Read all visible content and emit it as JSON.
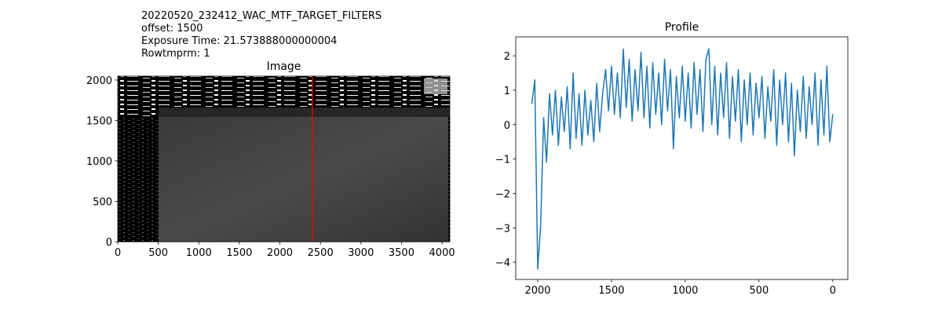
{
  "chart_data": [
    {
      "type": "image",
      "title": "Image",
      "annotations": [
        "20220520_232412_WAC_MTF_TARGET_FILTERS",
        "offset: 1500",
        "Exposure Time: 21.573888000000004",
        "Rowtmprm: 1"
      ],
      "xlim": [
        0,
        4096
      ],
      "ylim": [
        0,
        2048
      ],
      "xticks": [
        0,
        500,
        1000,
        1500,
        2000,
        2500,
        3000,
        3500,
        4000
      ],
      "yticks": [
        0,
        500,
        1000,
        1500,
        2000
      ],
      "marker_x": 2400,
      "marker_color": "#ff0000"
    },
    {
      "type": "line",
      "title": "Profile",
      "x": [
        2040,
        2020,
        2000,
        1980,
        1960,
        1940,
        1920,
        1900,
        1880,
        1860,
        1840,
        1820,
        1800,
        1780,
        1760,
        1740,
        1720,
        1700,
        1680,
        1660,
        1640,
        1620,
        1600,
        1580,
        1560,
        1540,
        1520,
        1500,
        1480,
        1460,
        1440,
        1420,
        1400,
        1380,
        1360,
        1340,
        1320,
        1300,
        1280,
        1260,
        1240,
        1220,
        1200,
        1180,
        1160,
        1140,
        1120,
        1100,
        1080,
        1060,
        1040,
        1020,
        1000,
        980,
        960,
        940,
        920,
        900,
        880,
        860,
        840,
        820,
        800,
        780,
        760,
        740,
        720,
        700,
        680,
        660,
        640,
        620,
        600,
        580,
        560,
        540,
        520,
        500,
        480,
        460,
        440,
        420,
        400,
        380,
        360,
        340,
        320,
        300,
        280,
        260,
        240,
        220,
        200,
        180,
        160,
        140,
        120,
        100,
        80,
        60,
        40,
        20,
        0
      ],
      "series": [
        {
          "color": "#1f77b4",
          "values": [
            0.6,
            1.3,
            -4.2,
            -2.9,
            0.2,
            -1.1,
            0.9,
            -0.3,
            1.0,
            -0.6,
            0.8,
            -0.2,
            1.1,
            -0.7,
            1.5,
            -0.4,
            0.9,
            -0.6,
            1.0,
            -0.3,
            0.7,
            -0.5,
            1.2,
            -0.2,
            0.9,
            1.6,
            0.4,
            1.7,
            0.3,
            1.5,
            0.2,
            2.2,
            0.5,
            1.9,
            0.1,
            1.6,
            0.4,
            2.1,
            0.2,
            1.7,
            -0.1,
            1.8,
            0.3,
            1.5,
            0.0,
            1.9,
            0.4,
            1.6,
            -0.7,
            1.4,
            0.2,
            1.7,
            0.1,
            1.5,
            -0.1,
            1.8,
            0.3,
            1.6,
            -0.2,
            1.9,
            2.2,
            0.0,
            1.7,
            -0.3,
            1.5,
            0.2,
            1.8,
            -0.4,
            1.4,
            0.1,
            1.6,
            -0.5,
            1.3,
            0.0,
            1.5,
            -0.3,
            1.2,
            0.2,
            1.4,
            -0.4,
            1.1,
            0.1,
            1.6,
            -0.6,
            1.3,
            0.0,
            1.5,
            -0.5,
            1.2,
            -0.9,
            1.0,
            -0.2,
            1.4,
            -0.4,
            1.1,
            0.0,
            1.5,
            -0.6,
            1.3,
            -0.3,
            1.7,
            -0.5,
            0.3
          ]
        }
      ],
      "xlim": [
        2149,
        -102
      ],
      "ylim": [
        -4.5,
        2.55
      ],
      "xticks": [
        2000,
        1500,
        1000,
        500,
        0
      ],
      "yticks": [
        {
          "value": -4,
          "label": "−4"
        },
        {
          "value": -3,
          "label": "−3"
        },
        {
          "value": -2,
          "label": "−2"
        },
        {
          "value": -1,
          "label": "−1"
        },
        0,
        1,
        2
      ]
    }
  ]
}
